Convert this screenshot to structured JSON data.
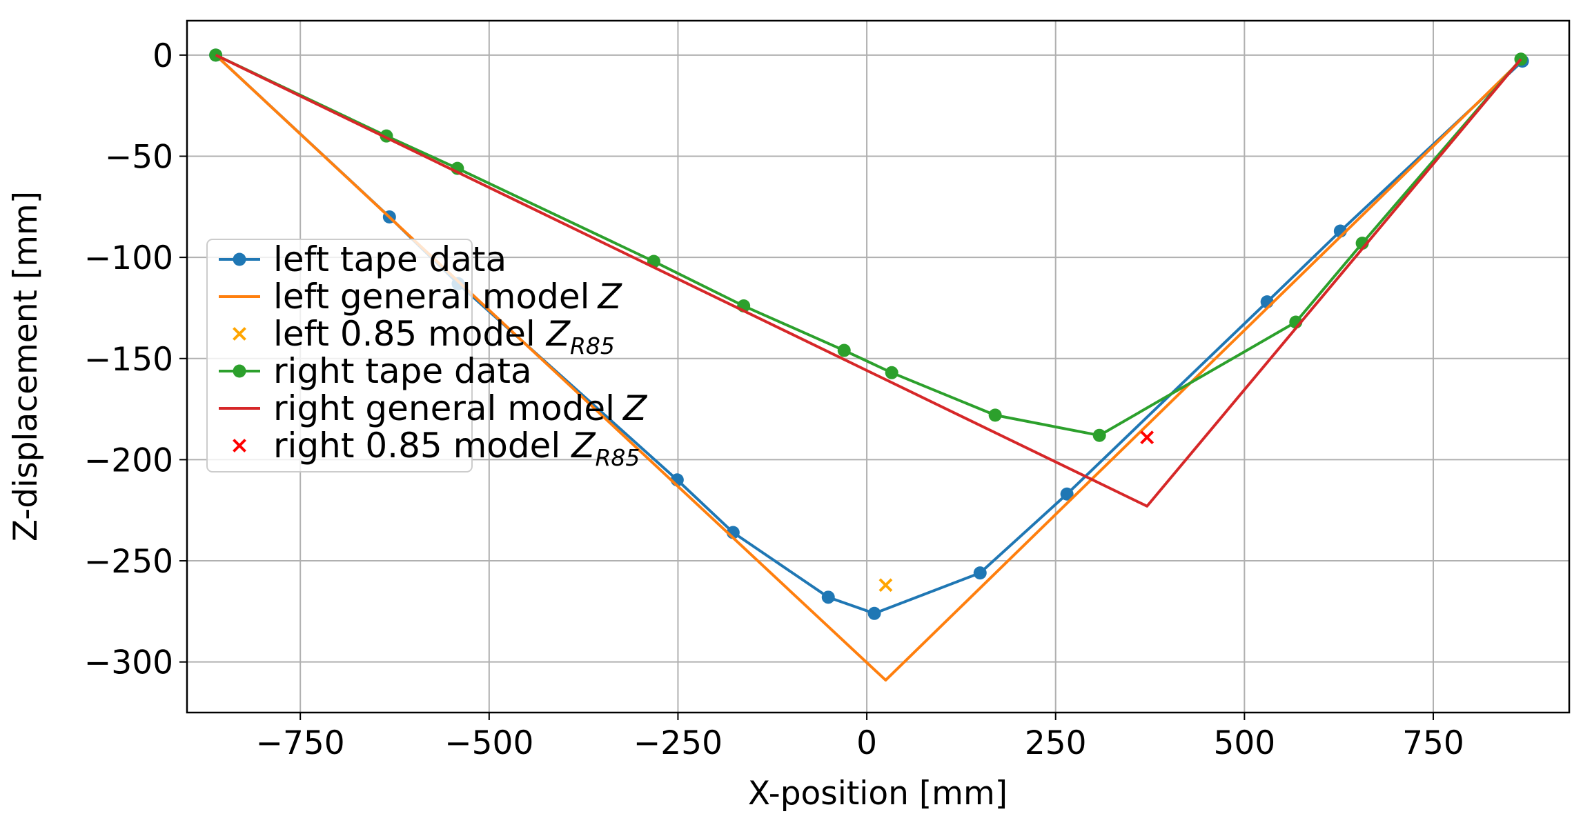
{
  "chart_data": {
    "type": "line",
    "title": "",
    "xlabel": "X-position [mm]",
    "ylabel": "Z-displacement [mm]",
    "xlim": [
      -900,
      930
    ],
    "ylim": [
      -325,
      17
    ],
    "xticks": [
      -750,
      -500,
      -250,
      0,
      250,
      500,
      750
    ],
    "xtick_labels": [
      "−750",
      "−500",
      "−250",
      "0",
      "250",
      "500",
      "750"
    ],
    "yticks": [
      0,
      -50,
      -100,
      -150,
      -200,
      -250,
      -300
    ],
    "ytick_labels": [
      "0",
      "−50",
      "−100",
      "−150",
      "−200",
      "−250",
      "−300"
    ],
    "grid": true,
    "legend_position": "lower-left",
    "series": [
      {
        "name": "left tape data",
        "kind": "line-marker",
        "color": "#1f77b4",
        "x": [
          -862,
          -632,
          -541,
          -251,
          -177,
          -51,
          10,
          150,
          265,
          530,
          627,
          868
        ],
        "y": [
          0,
          -80,
          -113,
          -210,
          -236,
          -268,
          -276,
          -256,
          -217,
          -122,
          -87,
          -3
        ]
      },
      {
        "name": "left general model",
        "math": "Z",
        "kind": "line",
        "color": "#ff7f0e",
        "x": [
          -862,
          25,
          868
        ],
        "y": [
          0,
          -309,
          -2
        ]
      },
      {
        "name": "left 0.85 model ",
        "math": "Z",
        "sub": "R85",
        "kind": "cross",
        "color": "#ffa500",
        "x": [
          25
        ],
        "y": [
          -262
        ]
      },
      {
        "name": "right tape data",
        "kind": "line-marker",
        "color": "#2ca02c",
        "x": [
          -862,
          -636,
          -542,
          -282,
          -163,
          -30,
          33,
          170,
          308,
          568,
          656,
          866
        ],
        "y": [
          0,
          -40,
          -56,
          -102,
          -124,
          -146,
          -157,
          -178,
          -188,
          -132,
          -93,
          -2
        ]
      },
      {
        "name": "right general model",
        "math": "Z",
        "kind": "line",
        "color": "#d62728",
        "x": [
          -862,
          371,
          866
        ],
        "y": [
          0,
          -223,
          -2
        ]
      },
      {
        "name": "right 0.85 model ",
        "math": "Z",
        "sub": "R85",
        "kind": "cross",
        "color": "#ff0000",
        "x": [
          371
        ],
        "y": [
          -189
        ]
      }
    ]
  }
}
